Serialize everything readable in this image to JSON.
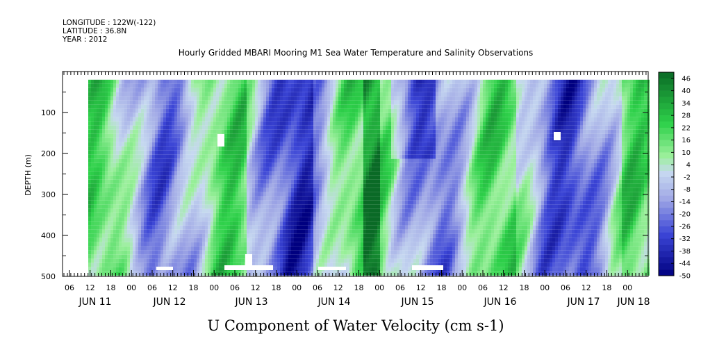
{
  "header": {
    "longitude": "LONGITUDE : 122W(-122)",
    "latitude": "LATITUDE : 36.8N",
    "year": "YEAR : 2012"
  },
  "chart_data": {
    "type": "heatmap",
    "title": "Hourly Gridded MBARI Mooring M1 Sea Water Temperature and Salinity Observations",
    "xlabel": "U Component of Water Velocity (cm s-1)",
    "ylabel": "DEPTH (m)",
    "y_axis": {
      "reversed": true,
      "ylim": [
        0,
        500
      ],
      "ticks": [
        100,
        200,
        300,
        400,
        500
      ],
      "minor_step": 50
    },
    "x_axis": {
      "hour_ticks": [
        "06",
        "12",
        "18",
        "00",
        "06",
        "12",
        "18",
        "00",
        "06",
        "12",
        "18",
        "00",
        "06",
        "12",
        "18",
        "00",
        "06",
        "12",
        "18",
        "00",
        "06",
        "12",
        "18",
        "00",
        "06",
        "12",
        "18",
        "00"
      ],
      "day_labels": [
        "JUN 11",
        "JUN 12",
        "JUN 13",
        "JUN 14",
        "JUN 15",
        "JUN 16",
        "JUN 17",
        "JUN 18"
      ]
    },
    "data_extent": {
      "depth_range": [
        20,
        490
      ]
    },
    "colorbar": {
      "labels": [
        "46",
        "40",
        "34",
        "28",
        "22",
        "16",
        "10",
        "4",
        "-2",
        "-8",
        "-14",
        "-20",
        "-26",
        "-32",
        "-38",
        "-44",
        "-50"
      ],
      "range": [
        -50,
        49
      ],
      "step": 3
    },
    "colors": {
      "negative_strong": "#000080",
      "negative_mid": "#3b45d6",
      "negative_light": "#a3abe6",
      "neutral": "#c6d8f0",
      "positive_light": "#9cf09c",
      "positive_mid": "#2ed14a",
      "positive_strong": "#0a6a26"
    }
  }
}
